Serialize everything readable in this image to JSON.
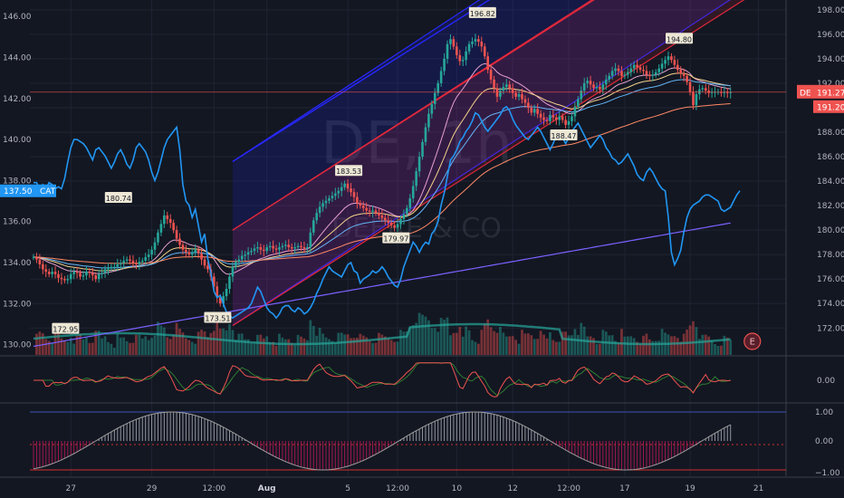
{
  "chart_data": {
    "type": "line",
    "title": "",
    "watermark": {
      "symbol": "DE, 1h",
      "company": "DEERE & CO"
    },
    "colors": {
      "background": "#131722",
      "grid": "#1f2433",
      "up": "#26a69a",
      "down": "#ef5350",
      "cat_line": "#2196f3",
      "channel_blue": "#2828ff",
      "channel_red": "#e0283c",
      "sma200": "#7b61ff",
      "ema_fast": "#e6a0d0",
      "ema_slow": "#ff8a65",
      "vol_ma": "#26a69a",
      "osc_red": "#ef5350",
      "hist_red": "#c2185b",
      "hist_gray": "#b2b5be",
      "macd_line": "#a00000"
    },
    "x_ticks": [
      "27",
      "29",
      "12:00",
      "Aug",
      "5",
      "12:00",
      "10",
      "12",
      "12:00",
      "17",
      "19",
      "21"
    ],
    "left_axis": {
      "ticks": [
        "130.00",
        "132.00",
        "134.00",
        "136.00",
        "138.00",
        "140.00",
        "142.00",
        "144.00",
        "146.00"
      ],
      "ylim": [
        129.5,
        146.8
      ]
    },
    "right_axis": {
      "ticks": [
        "172.00",
        "174.00",
        "176.00",
        "178.00",
        "180.00",
        "182.00",
        "184.00",
        "186.00",
        "188.00",
        "190.00",
        "192.00",
        "194.00",
        "196.00",
        "198.00"
      ],
      "ylim": [
        169.8,
        198.8
      ]
    },
    "osc1_ticks": [
      "0.00"
    ],
    "osc2_ticks": [
      "1.00",
      "0.00",
      "−1.00"
    ],
    "tags": [
      {
        "text": "137.50",
        "label": "CAT",
        "color": "#2196f3"
      },
      {
        "text": "DE",
        "value": "191.27",
        "color": "#ef5350"
      },
      {
        "text": "191.20",
        "color": "#ef5350"
      }
    ],
    "annotations": [
      {
        "text": "180.74",
        "x": 27.3,
        "y": 182.6
      },
      {
        "text": "172.95",
        "x": 10.3,
        "y": 171.9
      },
      {
        "text": "173.51",
        "x": 59.2,
        "y": 172.8
      },
      {
        "text": "183.53",
        "x": 101.3,
        "y": 184.8
      },
      {
        "text": "179.97",
        "x": 116.5,
        "y": 179.3
      },
      {
        "text": "196.82",
        "x": 144.3,
        "y": 197.7
      },
      {
        "text": "188.47",
        "x": 170.4,
        "y": 187.7
      },
      {
        "text": "194.80",
        "x": 207.5,
        "y": 195.6
      }
    ],
    "series": [
      {
        "name": "DE",
        "axis": "right",
        "values": [
          177.8,
          177.6,
          177.2,
          176.8,
          176.6,
          176.4,
          176.6,
          176.4,
          176.1,
          176.0,
          175.9,
          176.0,
          176.4,
          176.6,
          176.5,
          176.2,
          176.3,
          176.6,
          176.5,
          176.3,
          176.0,
          176.4,
          176.5,
          176.8,
          176.9,
          177.0,
          177.0,
          177.2,
          177.3,
          177.5,
          177.6,
          177.5,
          177.3,
          177.2,
          177.4,
          177.5,
          177.8,
          178.0,
          178.4,
          179.0,
          179.8,
          180.5,
          181.2,
          180.9,
          180.6,
          180.0,
          179.3,
          178.8,
          178.4,
          178.2,
          178.0,
          178.2,
          178.4,
          178.1,
          177.6,
          177.1,
          176.8,
          176.2,
          175.4,
          174.5,
          174.0,
          174.6,
          175.2,
          176.2,
          177.0,
          177.4,
          177.6,
          177.9,
          178.0,
          178.2,
          178.3,
          178.5,
          178.6,
          178.4,
          178.3,
          178.6,
          178.7,
          178.5,
          178.4,
          178.6,
          178.7,
          178.8,
          178.6,
          178.5,
          178.6,
          178.7,
          178.6,
          178.5,
          178.6,
          179.8,
          180.8,
          181.4,
          181.9,
          182.2,
          182.4,
          182.6,
          182.8,
          183.0,
          183.2,
          183.5,
          183.8,
          183.4,
          183.1,
          182.7,
          182.2,
          182.0,
          181.8,
          181.6,
          181.5,
          181.6,
          181.4,
          181.2,
          181.0,
          180.8,
          180.6,
          180.4,
          180.2,
          180.5,
          180.9,
          181.3,
          181.8,
          182.6,
          183.6,
          184.8,
          186.0,
          187.2,
          188.4,
          189.5,
          190.3,
          191.2,
          192.0,
          193.0,
          194.0,
          195.2,
          195.6,
          195.0,
          194.3,
          193.8,
          193.9,
          194.6,
          195.2,
          195.4,
          195.6,
          195.4,
          195.0,
          194.2,
          193.1,
          192.3,
          191.6,
          190.9,
          191.4,
          191.7,
          191.9,
          191.6,
          191.2,
          190.9,
          191.1,
          190.7,
          190.4,
          190.0,
          189.6,
          189.9,
          189.5,
          189.2,
          189.0,
          188.9,
          189.4,
          189.2,
          189.0,
          189.3,
          189.0,
          188.6,
          188.9,
          189.3,
          190.1,
          190.7,
          191.4,
          192.0,
          192.2,
          191.9,
          191.6,
          191.7,
          191.5,
          191.9,
          192.3,
          192.6,
          193.0,
          193.2,
          193.0,
          192.6,
          192.7,
          192.9,
          193.2,
          193.5,
          193.3,
          193.1,
          193.0,
          192.7,
          192.6,
          192.7,
          192.9,
          193.2,
          193.6,
          193.9,
          194.2,
          193.9,
          193.5,
          193.1,
          192.8,
          192.6,
          192.1,
          191.3,
          190.2,
          191.1,
          191.5,
          191.6,
          191.4,
          191.2,
          191.3,
          191.3,
          191.3,
          191.2,
          191.3,
          191.2,
          191.27
        ]
      },
      {
        "name": "CAT",
        "axis": "left",
        "values": [
          137.9,
          137.9,
          137.6,
          137.8,
          137.6,
          137.9,
          137.8,
          137.6,
          137.7,
          137.6,
          138.1,
          138.9,
          139.6,
          140.0,
          140.0,
          139.9,
          139.8,
          139.6,
          139.3,
          139.0,
          139.5,
          139.6,
          139.4,
          139.2,
          138.9,
          138.6,
          138.9,
          139.3,
          139.5,
          139.2,
          138.8,
          138.6,
          139.0,
          139.6,
          139.8,
          139.6,
          139.4,
          139.0,
          138.4,
          138.0,
          138.4,
          139.0,
          139.6,
          140.0,
          140.2,
          140.4,
          140.6,
          139.5,
          137.8,
          137.0,
          136.8,
          136.2,
          136.6,
          135.8,
          135.0,
          135.4,
          134.2,
          133.5,
          132.6,
          132.3,
          132.4,
          132.0,
          131.6,
          131.4,
          131.3,
          131.4,
          131.5,
          131.6,
          131.7,
          131.8,
          132.0,
          132.4,
          132.8,
          132.6,
          132.2,
          131.8,
          131.6,
          131.5,
          131.3,
          131.5,
          131.8,
          131.9,
          131.9,
          131.7,
          131.6,
          131.8,
          131.7,
          131.5,
          131.6,
          131.8,
          132.1,
          132.5,
          132.8,
          133.2,
          133.5,
          133.8,
          133.6,
          133.5,
          133.4,
          133.3,
          133.6,
          133.9,
          134.0,
          133.6,
          133.5,
          133.0,
          133.2,
          133.3,
          133.4,
          133.6,
          133.5,
          133.6,
          133.8,
          133.6,
          133.3,
          133.1,
          132.9,
          132.8,
          133.2,
          133.8,
          134.2,
          134.6,
          135.0,
          134.8,
          134.5,
          134.8,
          135.0,
          134.9,
          135.4,
          135.6,
          136.0,
          136.8,
          137.4,
          138.2,
          139.0,
          139.2,
          139.5,
          139.9,
          140.1,
          140.4,
          140.6,
          140.9,
          141.3,
          141.2,
          140.9,
          140.6,
          140.4,
          140.6,
          140.8,
          141.0,
          141.2,
          141.5,
          141.6,
          141.4,
          141.0,
          140.7,
          140.5,
          140.3,
          140.1,
          140.0,
          140.2,
          140.4,
          140.6,
          140.4,
          140.1,
          139.8,
          139.5,
          139.8,
          140.2,
          140.4,
          140.1,
          139.8,
          140.1,
          140.4,
          140.6,
          140.8,
          140.5,
          140.2,
          139.9,
          139.6,
          139.8,
          140.0,
          140.2,
          140.0,
          139.6,
          139.4,
          139.1,
          139.0,
          138.8,
          138.9,
          139.1,
          139.3,
          139.0,
          138.7,
          138.3,
          138.1,
          138.0,
          138.4,
          138.6,
          138.4,
          138.1,
          137.8,
          137.6,
          137.5,
          136.2,
          134.5,
          133.9,
          134.2,
          134.6,
          135.5,
          136.2,
          136.6,
          136.8,
          136.9,
          137.0,
          137.2,
          137.3,
          137.3,
          137.2,
          137.1,
          137.0,
          136.6,
          136.5,
          136.6,
          136.7,
          137.0,
          137.3,
          137.5
        ]
      }
    ]
  }
}
